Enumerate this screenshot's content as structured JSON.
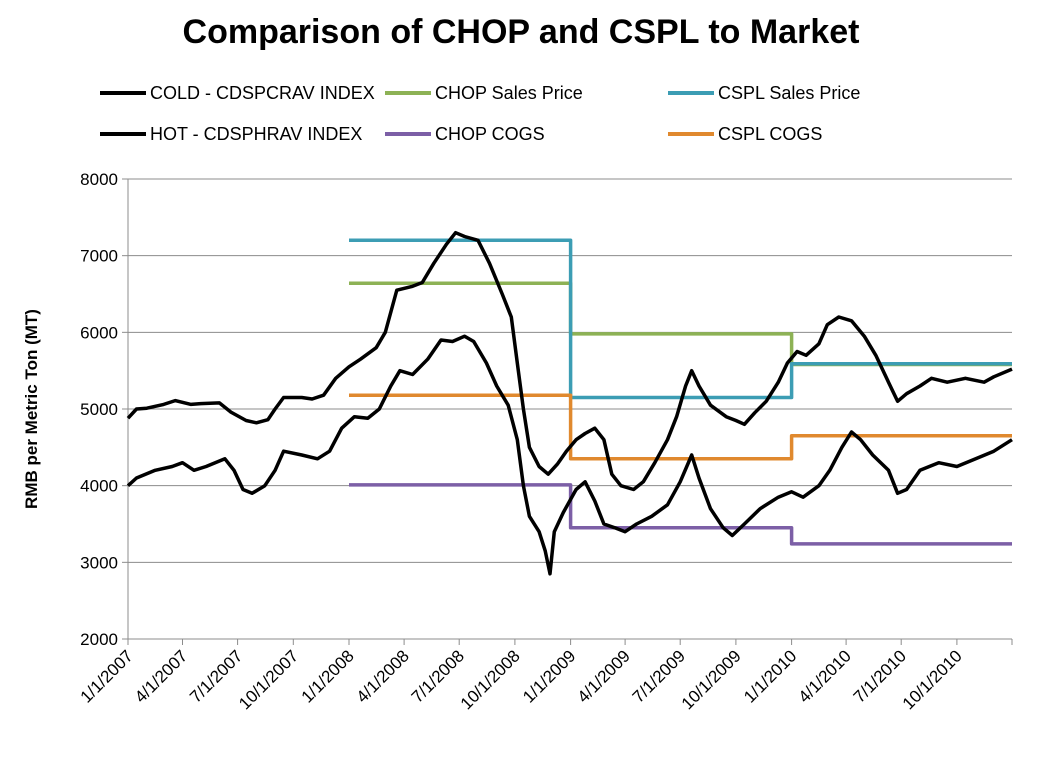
{
  "chart_data": {
    "type": "line",
    "title": "Comparison of CHOP and CSPL to Market",
    "xlabel": "",
    "ylabel": "RMB per Metric Ton (MT)",
    "ylim": [
      2000,
      8000
    ],
    "yticks": [
      2000,
      3000,
      4000,
      5000,
      6000,
      7000,
      8000
    ],
    "xlim": [
      "1/1/2007",
      "12/31/2010"
    ],
    "xtick_labels": [
      "1/1/2007",
      "4/1/2007",
      "7/1/2007",
      "10/1/2007",
      "1/1/2008",
      "4/1/2008",
      "7/1/2008",
      "10/1/2008",
      "1/1/2009",
      "4/1/2009",
      "7/1/2009",
      "10/1/2009",
      "1/1/2010",
      "4/1/2010",
      "7/1/2010",
      "10/1/2010"
    ],
    "grid": "horizontal",
    "legend_position": "top",
    "series": [
      {
        "name": "COLD - CDSPCRAV INDEX",
        "color": "#000000",
        "points": [
          [
            "1/1/2007",
            4880
          ],
          [
            "1/15/2007",
            5000
          ],
          [
            "2/1/2007",
            5010
          ],
          [
            "3/1/2007",
            5060
          ],
          [
            "3/20/2007",
            5110
          ],
          [
            "4/15/2007",
            5060
          ],
          [
            "5/1/2007",
            5070
          ],
          [
            "6/1/2007",
            5080
          ],
          [
            "6/20/2007",
            4960
          ],
          [
            "7/15/2007",
            4850
          ],
          [
            "8/1/2007",
            4820
          ],
          [
            "8/20/2007",
            4860
          ],
          [
            "9/1/2007",
            5000
          ],
          [
            "9/15/2007",
            5150
          ],
          [
            "10/15/2007",
            5150
          ],
          [
            "11/1/2007",
            5130
          ],
          [
            "11/20/2007",
            5180
          ],
          [
            "12/10/2007",
            5400
          ],
          [
            "1/1/2008",
            5550
          ],
          [
            "1/20/2008",
            5650
          ],
          [
            "2/15/2008",
            5800
          ],
          [
            "3/1/2008",
            6000
          ],
          [
            "3/20/2008",
            6550
          ],
          [
            "4/15/2008",
            6600
          ],
          [
            "5/1/2008",
            6650
          ],
          [
            "5/20/2008",
            6900
          ],
          [
            "6/10/2008",
            7150
          ],
          [
            "6/25/2008",
            7300
          ],
          [
            "7/10/2008",
            7250
          ],
          [
            "8/1/2008",
            7200
          ],
          [
            "8/20/2008",
            6900
          ],
          [
            "9/10/2008",
            6500
          ],
          [
            "9/25/2008",
            6200
          ],
          [
            "10/5/2008",
            5600
          ],
          [
            "10/15/2008",
            5000
          ],
          [
            "10/25/2008",
            4500
          ],
          [
            "11/10/2008",
            4250
          ],
          [
            "11/25/2008",
            4150
          ],
          [
            "12/10/2008",
            4280
          ],
          [
            "12/25/2008",
            4450
          ],
          [
            "1/10/2009",
            4600
          ],
          [
            "1/25/2009",
            4680
          ],
          [
            "2/10/2009",
            4750
          ],
          [
            "2/25/2009",
            4600
          ],
          [
            "3/10/2009",
            4150
          ],
          [
            "3/25/2009",
            4000
          ],
          [
            "4/15/2009",
            3950
          ],
          [
            "5/1/2009",
            4050
          ],
          [
            "5/20/2009",
            4300
          ],
          [
            "6/10/2009",
            4600
          ],
          [
            "6/25/2009",
            4900
          ],
          [
            "7/10/2009",
            5300
          ],
          [
            "7/20/2009",
            5500
          ],
          [
            "8/1/2009",
            5300
          ],
          [
            "8/20/2009",
            5050
          ],
          [
            "9/15/2009",
            4900
          ],
          [
            "10/1/2009",
            4850
          ],
          [
            "10/15/2009",
            4800
          ],
          [
            "11/1/2009",
            4950
          ],
          [
            "11/20/2009",
            5100
          ],
          [
            "12/10/2009",
            5350
          ],
          [
            "12/25/2009",
            5600
          ],
          [
            "1/10/2010",
            5750
          ],
          [
            "1/25/2010",
            5700
          ],
          [
            "2/15/2010",
            5850
          ],
          [
            "3/1/2010",
            6100
          ],
          [
            "3/20/2010",
            6200
          ],
          [
            "4/10/2010",
            6150
          ],
          [
            "5/1/2010",
            5950
          ],
          [
            "5/20/2010",
            5700
          ],
          [
            "6/10/2010",
            5350
          ],
          [
            "6/25/2010",
            5100
          ],
          [
            "7/10/2010",
            5200
          ],
          [
            "8/1/2010",
            5300
          ],
          [
            "8/20/2010",
            5400
          ],
          [
            "9/15/2010",
            5350
          ],
          [
            "10/15/2010",
            5400
          ],
          [
            "11/15/2010",
            5350
          ],
          [
            "12/1/2010",
            5420
          ],
          [
            "12/31/2010",
            5520
          ]
        ]
      },
      {
        "name": "HOT - CDSPHRAV INDEX",
        "color": "#000000",
        "points": [
          [
            "1/1/2007",
            4000
          ],
          [
            "1/15/2007",
            4100
          ],
          [
            "2/15/2007",
            4200
          ],
          [
            "3/15/2007",
            4250
          ],
          [
            "4/1/2007",
            4300
          ],
          [
            "4/20/2007",
            4200
          ],
          [
            "5/10/2007",
            4250
          ],
          [
            "6/10/2007",
            4350
          ],
          [
            "6/25/2007",
            4200
          ],
          [
            "7/10/2007",
            3950
          ],
          [
            "7/25/2007",
            3900
          ],
          [
            "8/15/2007",
            4000
          ],
          [
            "9/1/2007",
            4200
          ],
          [
            "9/15/2007",
            4450
          ],
          [
            "10/15/2007",
            4400
          ],
          [
            "11/10/2007",
            4350
          ],
          [
            "11/30/2007",
            4450
          ],
          [
            "12/20/2007",
            4750
          ],
          [
            "1/10/2008",
            4900
          ],
          [
            "2/1/2008",
            4880
          ],
          [
            "2/20/2008",
            5000
          ],
          [
            "3/10/2008",
            5300
          ],
          [
            "3/25/2008",
            5500
          ],
          [
            "4/15/2008",
            5450
          ],
          [
            "5/10/2008",
            5650
          ],
          [
            "6/1/2008",
            5900
          ],
          [
            "6/20/2008",
            5880
          ],
          [
            "7/10/2008",
            5950
          ],
          [
            "7/25/2008",
            5880
          ],
          [
            "8/15/2008",
            5600
          ],
          [
            "9/1/2008",
            5300
          ],
          [
            "9/20/2008",
            5050
          ],
          [
            "10/5/2008",
            4600
          ],
          [
            "10/15/2008",
            4000
          ],
          [
            "10/25/2008",
            3600
          ],
          [
            "11/10/2008",
            3400
          ],
          [
            "11/20/2008",
            3150
          ],
          [
            "11/28/2008",
            2850
          ],
          [
            "12/5/2008",
            3400
          ],
          [
            "12/20/2008",
            3650
          ],
          [
            "1/10/2009",
            3950
          ],
          [
            "1/25/2009",
            4050
          ],
          [
            "2/10/2009",
            3800
          ],
          [
            "2/25/2009",
            3500
          ],
          [
            "3/15/2009",
            3450
          ],
          [
            "4/1/2009",
            3400
          ],
          [
            "4/20/2009",
            3500
          ],
          [
            "5/15/2009",
            3600
          ],
          [
            "6/10/2009",
            3750
          ],
          [
            "7/1/2009",
            4050
          ],
          [
            "7/20/2009",
            4400
          ],
          [
            "8/1/2009",
            4100
          ],
          [
            "8/20/2009",
            3700
          ],
          [
            "9/10/2009",
            3450
          ],
          [
            "9/25/2009",
            3350
          ],
          [
            "10/15/2009",
            3500
          ],
          [
            "11/10/2009",
            3700
          ],
          [
            "12/10/2009",
            3850
          ],
          [
            "1/1/2010",
            3920
          ],
          [
            "1/20/2010",
            3850
          ],
          [
            "2/15/2010",
            4000
          ],
          [
            "3/5/2010",
            4200
          ],
          [
            "3/25/2010",
            4500
          ],
          [
            "4/10/2010",
            4700
          ],
          [
            "4/25/2010",
            4600
          ],
          [
            "5/15/2010",
            4400
          ],
          [
            "6/10/2010",
            4200
          ],
          [
            "6/25/2010",
            3900
          ],
          [
            "7/10/2010",
            3950
          ],
          [
            "8/1/2010",
            4200
          ],
          [
            "9/1/2010",
            4300
          ],
          [
            "10/1/2010",
            4250
          ],
          [
            "11/1/2010",
            4350
          ],
          [
            "12/1/2010",
            4450
          ],
          [
            "12/31/2010",
            4600
          ]
        ]
      },
      {
        "name": "CHOP Sales Price",
        "color": "#8DB255",
        "points": [
          [
            "1/1/2008",
            6640
          ],
          [
            "1/1/2009",
            6640
          ],
          [
            "1/1/2009",
            5980
          ],
          [
            "1/1/2010",
            5980
          ],
          [
            "1/1/2010",
            5580
          ],
          [
            "12/31/2010",
            5580
          ]
        ]
      },
      {
        "name": "CHOP COGS",
        "color": "#7C5FA6",
        "points": [
          [
            "1/1/2008",
            4010
          ],
          [
            "1/1/2009",
            4010
          ],
          [
            "1/1/2009",
            3450
          ],
          [
            "1/1/2010",
            3450
          ],
          [
            "1/1/2010",
            3240
          ],
          [
            "12/31/2010",
            3240
          ]
        ]
      },
      {
        "name": "CSPL Sales Price",
        "color": "#3C9DB4",
        "points": [
          [
            "1/1/2008",
            7200
          ],
          [
            "1/1/2009",
            7200
          ],
          [
            "1/1/2009",
            5150
          ],
          [
            "1/1/2010",
            5150
          ],
          [
            "1/1/2010",
            5590
          ],
          [
            "12/31/2010",
            5590
          ]
        ]
      },
      {
        "name": "CSPL COGS",
        "color": "#E0892E",
        "points": [
          [
            "1/1/2008",
            5180
          ],
          [
            "1/1/2009",
            5180
          ],
          [
            "1/1/2009",
            4350
          ],
          [
            "1/1/2010",
            4350
          ],
          [
            "1/1/2010",
            4650
          ],
          [
            "12/31/2010",
            4650
          ]
        ]
      }
    ]
  }
}
